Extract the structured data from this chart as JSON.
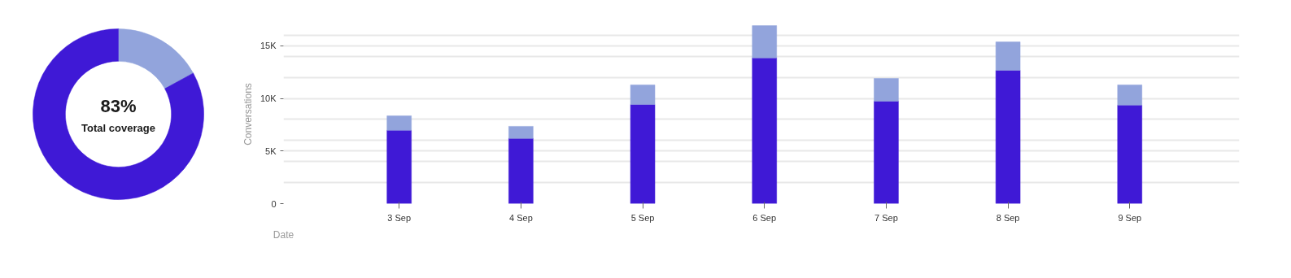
{
  "chart_data": [
    {
      "type": "donut",
      "categories": [
        null,
        null
      ],
      "values": [
        17,
        83
      ],
      "colors": [
        "#92a4dc",
        "#3f19d6"
      ],
      "annotations": [
        "83%",
        "Total coverage"
      ]
    },
    {
      "type": "bar",
      "stacked": true,
      "categories": [
        "3 Sep",
        "4 Sep",
        "5 Sep",
        "6 Sep",
        "7 Sep",
        "8 Sep",
        "9 Sep"
      ],
      "series": [
        {
          "color": "#3f19d6",
          "values": [
            6970,
            6200,
            9430,
            13860,
            9740,
            12670,
            9360
          ]
        },
        {
          "color": "#92a4dc",
          "values": [
            1380,
            1150,
            1860,
            3060,
            2160,
            2700,
            1930
          ]
        }
      ],
      "xlabel": "Date",
      "ylabel": "Conversations",
      "ylim": [
        0,
        17000
      ],
      "yticks": [
        {
          "value": 0,
          "label": "0"
        },
        {
          "value": 2000,
          "label": null
        },
        {
          "value": 4000,
          "label": null
        },
        {
          "value": 5000,
          "label": "5K"
        },
        {
          "value": 6000,
          "label": null
        },
        {
          "value": 8000,
          "label": null
        },
        {
          "value": 10000,
          "label": "10K"
        },
        {
          "value": 12000,
          "label": null
        },
        {
          "value": 14000,
          "label": null
        },
        {
          "value": 15000,
          "label": "15K"
        },
        {
          "value": 16000,
          "label": null
        }
      ],
      "grid": "y"
    }
  ]
}
